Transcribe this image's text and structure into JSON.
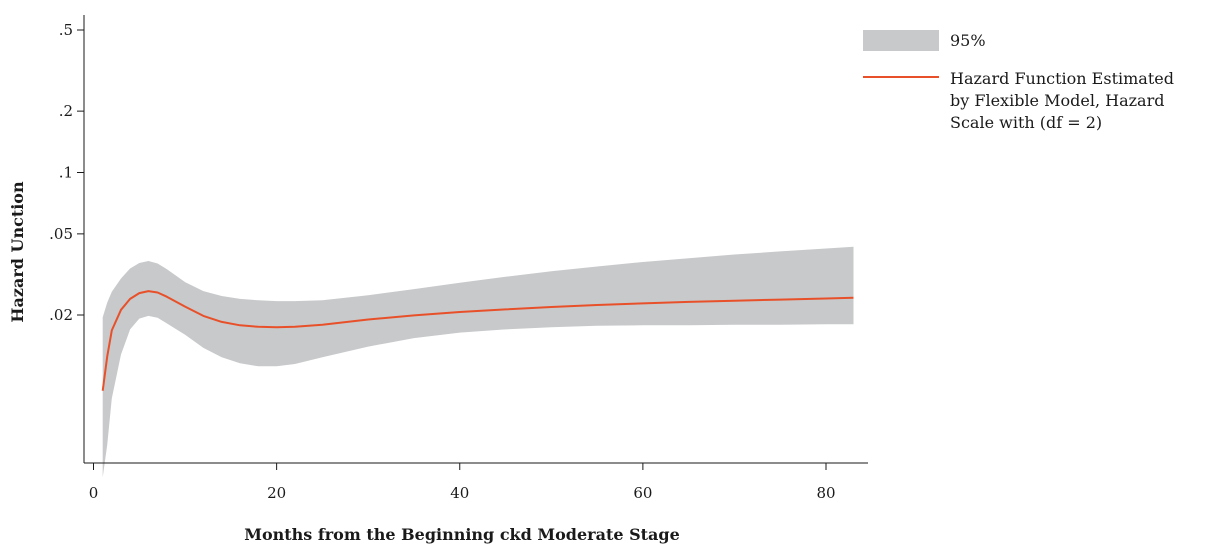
{
  "chart_data": {
    "type": "area",
    "xlabel": "Months from the Beginning ckd Moderate Stage",
    "ylabel": "Hazard Unction",
    "xlim": [
      0,
      84
    ],
    "xticks": [
      0,
      20,
      40,
      60,
      80
    ],
    "xtick_labels": [
      "0",
      "20",
      "40",
      "60",
      "80"
    ],
    "yscale": "log",
    "yticks": [
      0.5,
      0.2,
      0.1,
      0.05,
      0.02
    ],
    "ytick_labels": [
      ".5",
      ".2",
      ".1",
      ".05",
      ".02"
    ],
    "grid": false,
    "legend_position": "right",
    "x": [
      1,
      1.5,
      2,
      3,
      4,
      5,
      6,
      7,
      8,
      10,
      12,
      14,
      16,
      18,
      20,
      22,
      25,
      30,
      35,
      40,
      45,
      50,
      55,
      60,
      65,
      70,
      75,
      80,
      83
    ],
    "series": [
      {
        "name": "95%",
        "kind": "band",
        "color": "#c8c9cb",
        "lower": [
          0.0032,
          0.0046,
          0.0078,
          0.0128,
          0.017,
          0.0192,
          0.0198,
          0.0194,
          0.0182,
          0.016,
          0.0138,
          0.0124,
          0.0116,
          0.0112,
          0.0112,
          0.0115,
          0.0124,
          0.014,
          0.0154,
          0.0164,
          0.017,
          0.0174,
          0.0177,
          0.0178,
          0.0178,
          0.0179,
          0.0179,
          0.018,
          0.018
        ],
        "upper": [
          0.0195,
          0.023,
          0.026,
          0.0302,
          0.0338,
          0.036,
          0.0368,
          0.0358,
          0.0336,
          0.029,
          0.0262,
          0.0248,
          0.024,
          0.0236,
          0.0234,
          0.0234,
          0.0236,
          0.025,
          0.0268,
          0.0288,
          0.0308,
          0.0328,
          0.0346,
          0.0364,
          0.038,
          0.0396,
          0.041,
          0.0424,
          0.0432
        ]
      },
      {
        "name": "Hazard Function Estimated by Flexible Model, Hazard Scale with (df = 2)",
        "kind": "line",
        "color": "#e8502a",
        "values": [
          0.0085,
          0.0125,
          0.0168,
          0.0212,
          0.024,
          0.0256,
          0.0262,
          0.0258,
          0.0246,
          0.022,
          0.0198,
          0.0185,
          0.0178,
          0.0175,
          0.0174,
          0.0175,
          0.0179,
          0.019,
          0.0199,
          0.0207,
          0.0213,
          0.0219,
          0.0224,
          0.0228,
          0.0232,
          0.0235,
          0.0238,
          0.0241,
          0.0243
        ]
      }
    ]
  },
  "legend": {
    "band_label": "95%",
    "line_label_lines": [
      "Hazard Function Estimated",
      "by Flexible Model, Hazard",
      "Scale with (df = 2)"
    ]
  }
}
